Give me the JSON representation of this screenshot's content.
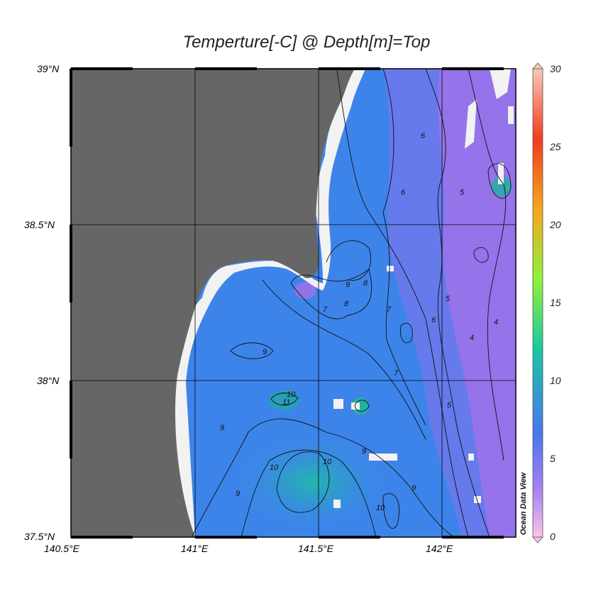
{
  "title": "Temperture[-C] @ Depth[m]=Top",
  "watermark": "Ocean Data View",
  "map": {
    "lat_labels": [
      "39°N",
      "38.5°N",
      "38°N",
      "37.5°N"
    ],
    "lon_labels": [
      "140.5°E",
      "141°E",
      "141.5°E",
      "142°E"
    ],
    "lat_range": [
      37.5,
      39.0
    ],
    "lon_range": [
      140.5,
      142.3
    ]
  },
  "colorbar": {
    "ticks": [
      "30",
      "25",
      "20",
      "15",
      "10",
      "5",
      "0"
    ],
    "range": [
      0,
      30
    ],
    "colors": [
      "#f7c4e8",
      "#a982f0",
      "#4a74ee",
      "#19c6a4",
      "#8ef23a",
      "#f6a71b",
      "#f23b1f",
      "#f7c9b8"
    ]
  },
  "colors": {
    "land": "#666666",
    "nodata": "#f2f2f2",
    "warm_water": "#2fb7b0",
    "mid_water": "#3b86ea",
    "cool_water": "#9a72ea"
  },
  "contour_labels": [
    {
      "text": "9"
    },
    {
      "text": "10"
    },
    {
      "text": "11"
    },
    {
      "text": "9"
    },
    {
      "text": "8"
    },
    {
      "text": "7"
    },
    {
      "text": "6"
    },
    {
      "text": "5"
    },
    {
      "text": "4"
    },
    {
      "text": "10"
    },
    {
      "text": "10"
    },
    {
      "text": "9"
    },
    {
      "text": "8"
    },
    {
      "text": "7"
    },
    {
      "text": "6"
    },
    {
      "text": "5"
    },
    {
      "text": "4"
    },
    {
      "text": "9"
    },
    {
      "text": "10"
    },
    {
      "text": "9"
    },
    {
      "text": "7"
    },
    {
      "text": "6"
    },
    {
      "text": "5"
    },
    {
      "text": "9"
    }
  ]
}
